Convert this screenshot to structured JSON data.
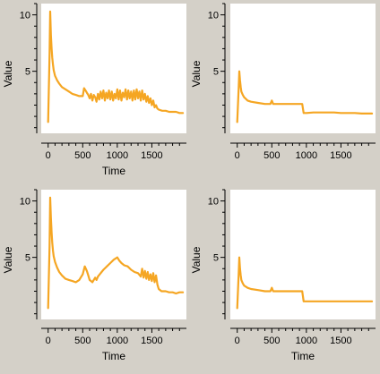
{
  "colors": {
    "background": "#d4d0c8",
    "plot_bg": "#ffffff",
    "line": "#f5a623",
    "axis": "#000000"
  },
  "chart_data": [
    {
      "type": "line",
      "xlabel": "Time",
      "ylabel": "Value",
      "xlim": [
        -100,
        2000
      ],
      "ylim": [
        -0.5,
        11
      ],
      "xticks": [
        0,
        500,
        1000,
        1500
      ],
      "yticks": [
        5,
        10
      ],
      "grid": false,
      "series": [
        {
          "x": [
            0,
            20,
            30,
            40,
            50,
            60,
            70,
            80,
            100,
            130,
            160,
            200,
            250,
            300,
            350,
            400,
            450,
            500,
            520,
            540,
            560,
            580,
            600,
            620,
            640,
            660,
            680,
            700,
            720,
            740,
            760,
            780,
            800,
            820,
            840,
            860,
            880,
            900,
            920,
            940,
            960,
            980,
            1000,
            1020,
            1040,
            1060,
            1080,
            1100,
            1120,
            1140,
            1160,
            1180,
            1200,
            1220,
            1240,
            1260,
            1280,
            1300,
            1320,
            1340,
            1360,
            1380,
            1400,
            1420,
            1440,
            1460,
            1480,
            1500,
            1520,
            1540,
            1560,
            1580,
            1600,
            1650,
            1700,
            1750,
            1800,
            1850,
            1900,
            1950
          ],
          "y": [
            0.5,
            6.5,
            10.3,
            8.2,
            7.0,
            6.2,
            5.6,
            5.1,
            4.6,
            4.2,
            3.9,
            3.6,
            3.4,
            3.2,
            3.0,
            2.9,
            2.8,
            2.8,
            3.5,
            3.3,
            3.1,
            2.9,
            2.6,
            3.0,
            2.4,
            2.9,
            2.7,
            2.3,
            3.0,
            2.5,
            3.2,
            2.6,
            3.3,
            2.4,
            3.1,
            2.6,
            3.3,
            2.5,
            3.2,
            2.4,
            3.0,
            2.6,
            3.4,
            2.5,
            3.3,
            2.4,
            3.1,
            2.7,
            3.4,
            2.5,
            3.3,
            2.6,
            3.2,
            2.4,
            3.3,
            2.5,
            3.4,
            2.6,
            3.2,
            2.4,
            3.3,
            2.5,
            3.0,
            2.3,
            2.8,
            2.2,
            2.6,
            2.0,
            2.4,
            1.8,
            2.0,
            1.7,
            1.6,
            1.5,
            1.5,
            1.4,
            1.4,
            1.4,
            1.3,
            1.3
          ]
        }
      ]
    },
    {
      "type": "line",
      "xlabel": "",
      "ylabel": "Value",
      "xlim": [
        -100,
        2000
      ],
      "ylim": [
        -0.5,
        11
      ],
      "xticks": [
        0,
        500,
        1000,
        1500
      ],
      "yticks": [
        5,
        10
      ],
      "grid": false,
      "series": [
        {
          "x": [
            0,
            20,
            30,
            40,
            50,
            60,
            80,
            100,
            150,
            200,
            300,
            400,
            480,
            500,
            520,
            540,
            600,
            700,
            800,
            900,
            940,
            960,
            1000,
            1100,
            1200,
            1300,
            1400,
            1500,
            1600,
            1700,
            1800,
            1900,
            1950
          ],
          "y": [
            0.5,
            3.5,
            5.0,
            4.2,
            3.6,
            3.2,
            2.9,
            2.7,
            2.4,
            2.3,
            2.2,
            2.1,
            2.1,
            2.4,
            2.1,
            2.1,
            2.1,
            2.1,
            2.1,
            2.1,
            2.1,
            1.3,
            1.3,
            1.35,
            1.35,
            1.35,
            1.35,
            1.3,
            1.3,
            1.3,
            1.25,
            1.25,
            1.25
          ]
        }
      ]
    },
    {
      "type": "line",
      "xlabel": "Time",
      "ylabel": "Value",
      "xlim": [
        -100,
        2000
      ],
      "ylim": [
        -0.5,
        11
      ],
      "xticks": [
        0,
        500,
        1000,
        1500
      ],
      "yticks": [
        5,
        10
      ],
      "grid": false,
      "series": [
        {
          "x": [
            0,
            20,
            30,
            40,
            50,
            60,
            70,
            80,
            100,
            130,
            160,
            200,
            250,
            300,
            350,
            400,
            450,
            500,
            530,
            560,
            580,
            600,
            640,
            680,
            700,
            720,
            760,
            800,
            850,
            900,
            950,
            1000,
            1030,
            1060,
            1100,
            1150,
            1200,
            1250,
            1300,
            1340,
            1360,
            1380,
            1400,
            1420,
            1440,
            1460,
            1480,
            1500,
            1520,
            1540,
            1560,
            1580,
            1600,
            1640,
            1700,
            1750,
            1800,
            1850,
            1900,
            1950
          ],
          "y": [
            0.5,
            6.0,
            10.3,
            8.5,
            7.2,
            6.3,
            5.6,
            5.1,
            4.6,
            4.1,
            3.7,
            3.4,
            3.1,
            3.0,
            2.9,
            2.8,
            3.0,
            3.5,
            4.2,
            3.8,
            3.4,
            3.0,
            2.8,
            3.2,
            3.0,
            3.3,
            3.6,
            3.9,
            4.2,
            4.5,
            4.8,
            5.0,
            4.7,
            4.5,
            4.3,
            4.2,
            3.9,
            3.7,
            3.6,
            3.3,
            4.0,
            3.2,
            3.8,
            3.1,
            3.7,
            3.0,
            3.5,
            2.9,
            3.6,
            2.8,
            3.4,
            2.6,
            2.2,
            2.0,
            2.0,
            1.9,
            1.9,
            1.8,
            1.9,
            1.9
          ]
        }
      ]
    },
    {
      "type": "line",
      "xlabel": "Time",
      "ylabel": "Value",
      "xlim": [
        -100,
        2000
      ],
      "ylim": [
        -0.5,
        11
      ],
      "xticks": [
        0,
        500,
        1000,
        1500
      ],
      "yticks": [
        5,
        10
      ],
      "grid": false,
      "series": [
        {
          "x": [
            0,
            20,
            30,
            40,
            50,
            60,
            80,
            100,
            150,
            200,
            300,
            400,
            480,
            500,
            520,
            540,
            600,
            700,
            800,
            900,
            940,
            960,
            1000,
            1100,
            1200,
            1300,
            1400,
            1500,
            1600,
            1700,
            1800,
            1900,
            1950
          ],
          "y": [
            0.5,
            3.5,
            5.0,
            4.0,
            3.4,
            3.0,
            2.7,
            2.5,
            2.3,
            2.2,
            2.1,
            2.0,
            2.0,
            2.3,
            2.0,
            2.0,
            2.0,
            2.0,
            2.0,
            2.0,
            2.0,
            1.1,
            1.1,
            1.1,
            1.1,
            1.1,
            1.1,
            1.1,
            1.1,
            1.1,
            1.1,
            1.1,
            1.1
          ]
        }
      ]
    }
  ]
}
